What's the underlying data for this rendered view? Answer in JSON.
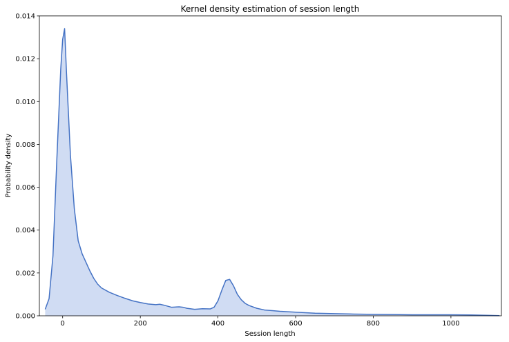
{
  "chart_data": {
    "type": "area",
    "title": "Kernel density estimation of session length",
    "xlabel": "Session length",
    "ylabel": "Probability density",
    "xlim": [
      -60,
      1130
    ],
    "ylim": [
      0,
      0.014
    ],
    "xticks": [
      0,
      200,
      400,
      600,
      800,
      1000
    ],
    "xtick_labels": [
      "0",
      "200",
      "400",
      "600",
      "800",
      "1000"
    ],
    "yticks": [
      0,
      0.002,
      0.004,
      0.006,
      0.008,
      0.01,
      0.012,
      0.014
    ],
    "ytick_labels": [
      "0.000",
      "0.002",
      "0.004",
      "0.006",
      "0.008",
      "0.010",
      "0.012",
      "0.014"
    ],
    "grid": false,
    "line_color": "#4472c4",
    "fill_color": "#d0dcf3",
    "series": [
      {
        "x": [
          -45,
          -35,
          -25,
          -15,
          -5,
          0,
          5,
          10,
          20,
          30,
          40,
          50,
          60,
          70,
          80,
          90,
          100,
          120,
          140,
          160,
          180,
          200,
          220,
          240,
          250,
          260,
          280,
          300,
          310,
          320,
          340,
          360,
          380,
          390,
          400,
          410,
          420,
          430,
          440,
          450,
          460,
          470,
          480,
          500,
          520,
          540,
          560,
          600,
          650,
          700,
          750,
          800,
          850,
          900,
          950,
          1000,
          1050,
          1100,
          1125
        ],
        "y": [
          0.0003,
          0.0008,
          0.0028,
          0.0073,
          0.0115,
          0.0129,
          0.0134,
          0.0113,
          0.0075,
          0.005,
          0.0035,
          0.0029,
          0.0025,
          0.0021,
          0.00175,
          0.00148,
          0.0013,
          0.0011,
          0.00095,
          0.00082,
          0.0007,
          0.00062,
          0.00055,
          0.00052,
          0.00054,
          0.0005,
          0.0004,
          0.00042,
          0.0004,
          0.00035,
          0.0003,
          0.00033,
          0.00032,
          0.0004,
          0.0007,
          0.0012,
          0.00165,
          0.0017,
          0.0014,
          0.001,
          0.00075,
          0.00058,
          0.00048,
          0.00035,
          0.00027,
          0.00024,
          0.00021,
          0.00017,
          0.00012,
          0.0001,
          8e-05,
          7e-05,
          6e-05,
          5e-05,
          5e-05,
          5e-05,
          4e-05,
          2e-05,
          1e-05
        ]
      }
    ]
  }
}
